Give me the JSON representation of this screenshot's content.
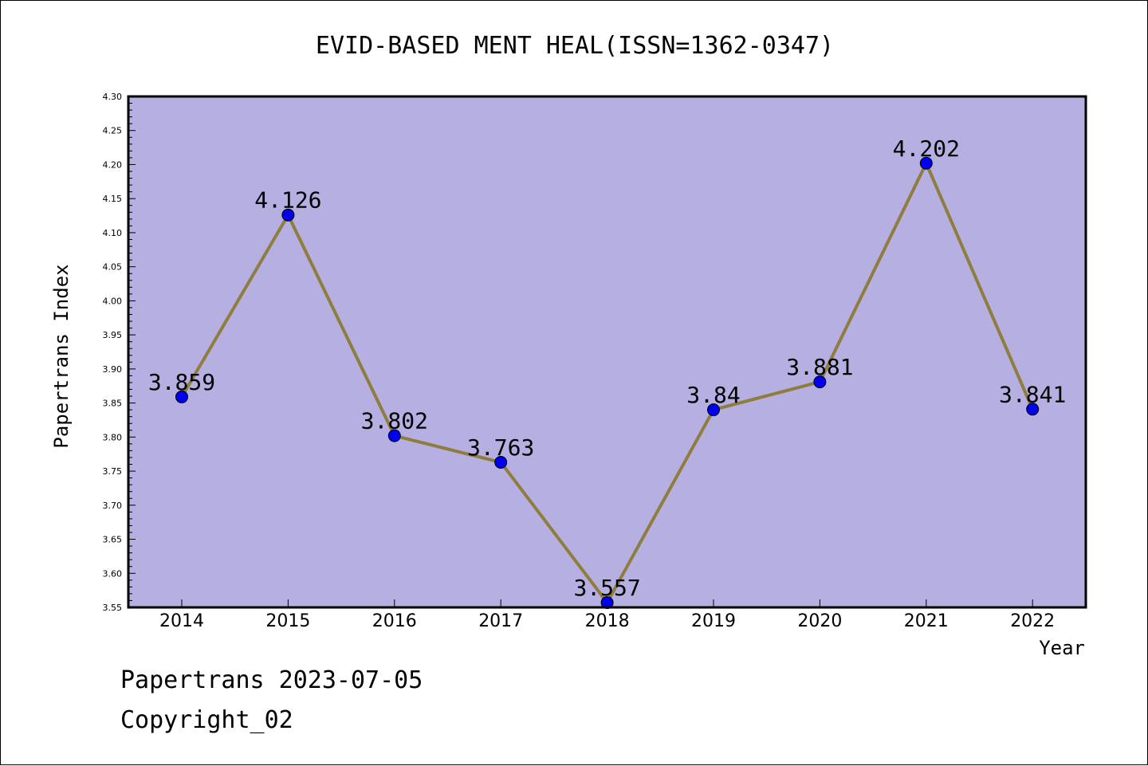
{
  "chart_data": {
    "type": "line",
    "title": "EVID-BASED MENT HEAL(ISSN=1362-0347)",
    "xlabel": "Year",
    "ylabel": "Papertrans Index",
    "categories": [
      "2014",
      "2015",
      "2016",
      "2017",
      "2018",
      "2019",
      "2020",
      "2021",
      "2022"
    ],
    "values": [
      3.859,
      4.126,
      3.802,
      3.763,
      3.557,
      3.84,
      3.881,
      4.202,
      3.841
    ],
    "data_labels": [
      "3.859",
      "4.126",
      "3.802",
      "3.763",
      "3.557",
      "3.84",
      "3.881",
      "4.202",
      "3.841"
    ],
    "ylim": [
      3.55,
      4.3
    ],
    "yticks": [
      "3.55",
      "3.60",
      "3.65",
      "3.70",
      "3.75",
      "3.80",
      "3.85",
      "3.90",
      "3.95",
      "4.00",
      "4.05",
      "4.10",
      "4.15",
      "4.20",
      "4.25",
      "4.30"
    ],
    "grid": false,
    "legend": "none",
    "colors": {
      "plot_background": "#b5afe2",
      "line": "#8e7d3c",
      "marker": "#0000ee"
    }
  },
  "footer": {
    "date_text": "Papertrans 2023-07-05",
    "copyright_text": "Copyright_02"
  }
}
